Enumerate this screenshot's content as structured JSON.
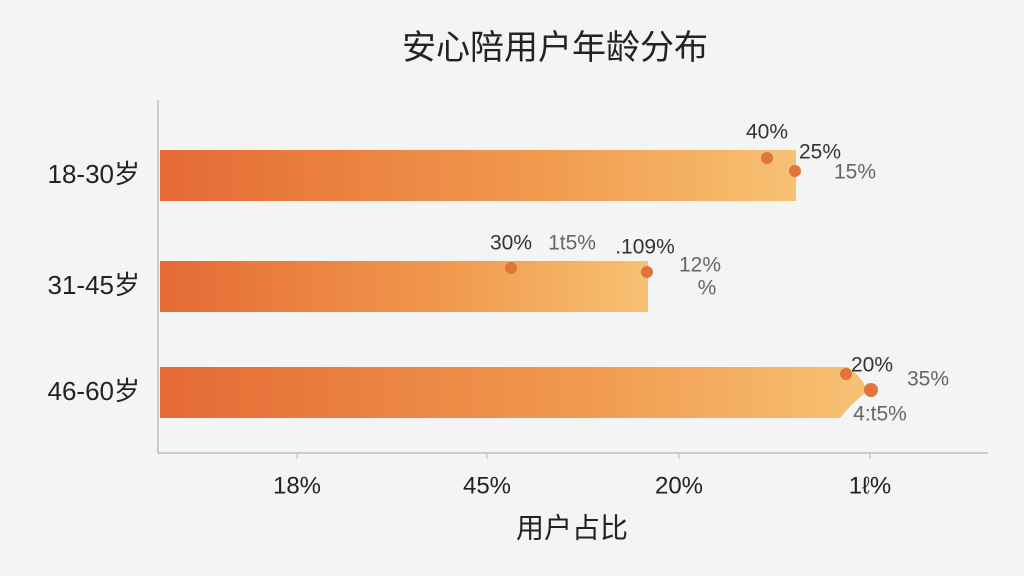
{
  "title": "安心陪用户年龄分布",
  "rows": [
    {
      "label": "18-30岁",
      "annotations": [
        "40%",
        "25%",
        "15%"
      ]
    },
    {
      "label": "31-45岁",
      "annotations": [
        "30%",
        "1t5%",
        ".109%",
        "12%",
        "%"
      ]
    },
    {
      "label": "46-60岁",
      "annotations": [
        "20%",
        "35%",
        "4:t5%"
      ]
    }
  ],
  "x_axis": {
    "ticks": [
      "18%",
      "45%",
      "20%",
      "1ℓ%"
    ],
    "title": "用户占比"
  }
}
